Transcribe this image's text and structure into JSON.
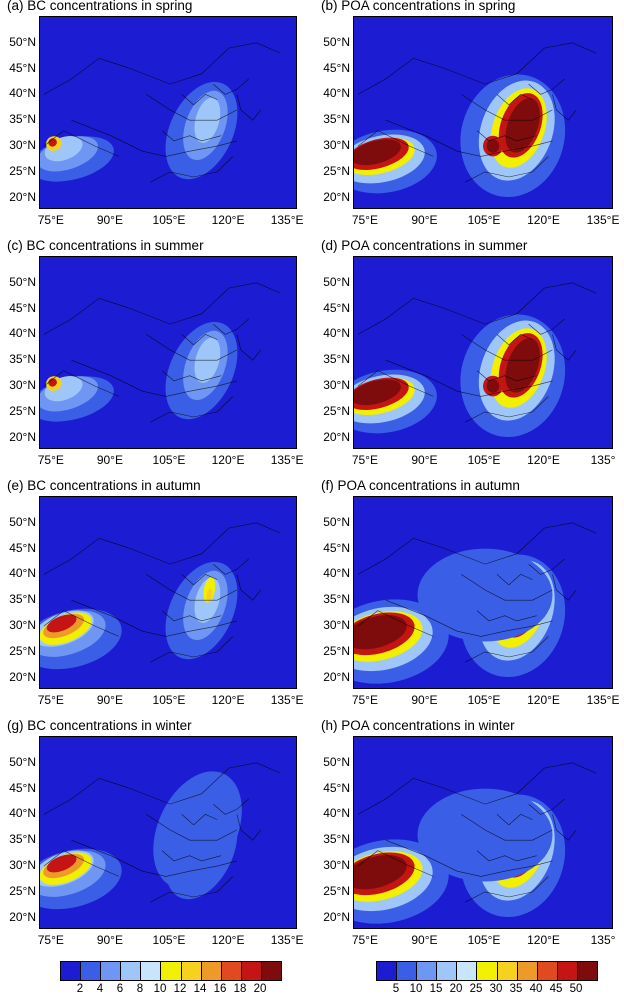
{
  "panels": [
    {
      "id": "a",
      "title": "(a) BC concentrations in spring",
      "species": "BC",
      "season": "spring"
    },
    {
      "id": "b",
      "title": "(b) POA concentrations in spring",
      "species": "POA",
      "season": "spring"
    },
    {
      "id": "c",
      "title": "(c) BC concentrations in summer",
      "species": "BC",
      "season": "summer"
    },
    {
      "id": "d",
      "title": "(d) POA concentrations in summer",
      "species": "POA",
      "season": "summer"
    },
    {
      "id": "e",
      "title": "(e) BC concentrations in autumn",
      "species": "BC",
      "season": "autumn"
    },
    {
      "id": "f",
      "title": "(f) POA concentrations in autumn",
      "species": "POA",
      "season": "autumn"
    },
    {
      "id": "g",
      "title": "(g) BC concentrations in winter",
      "species": "BC",
      "season": "winter"
    },
    {
      "id": "h",
      "title": "(h) POA concentrations in winter",
      "species": "POA",
      "season": "winter"
    }
  ],
  "lat_labels": [
    "50°N",
    "45°N",
    "40°N",
    "35°N",
    "30°N",
    "25°N",
    "20°N"
  ],
  "lon_labels_left": [
    "75°E",
    "90°E",
    "105°E",
    "120°E",
    "135°E"
  ],
  "lon_labels_right": [
    [
      "75°E",
      "90°E",
      "105°E",
      "120°E",
      "135°E"
    ],
    [
      "75°E",
      "90°E",
      "105°E",
      "120°E",
      "135°"
    ],
    [
      "75°E",
      "90°E",
      "105°E",
      "120°E",
      "135°E"
    ],
    [
      "75°E",
      "90°E",
      "105°E",
      "120°E",
      "135°"
    ]
  ],
  "colorbar_bc": {
    "ticks": [
      "2",
      "4",
      "6",
      "8",
      "10",
      "12",
      "14",
      "16",
      "18",
      "20"
    ],
    "colors": [
      "#1c1cd2",
      "#3b5ee6",
      "#6f96f2",
      "#9fc6f8",
      "#c7e6fb",
      "#f0f000",
      "#f6d21e",
      "#ee9a28",
      "#e04a1e",
      "#c41414",
      "#7e0c0c"
    ]
  },
  "colorbar_poa": {
    "ticks": [
      "5",
      "10",
      "15",
      "20",
      "25",
      "30",
      "35",
      "40",
      "45",
      "50"
    ],
    "colors": [
      "#1c1cd2",
      "#3b5ee6",
      "#6f96f2",
      "#9fc6f8",
      "#c7e6fb",
      "#f0f000",
      "#f6d21e",
      "#ee9a28",
      "#e04a1e",
      "#c41414",
      "#7e0c0c"
    ]
  }
}
